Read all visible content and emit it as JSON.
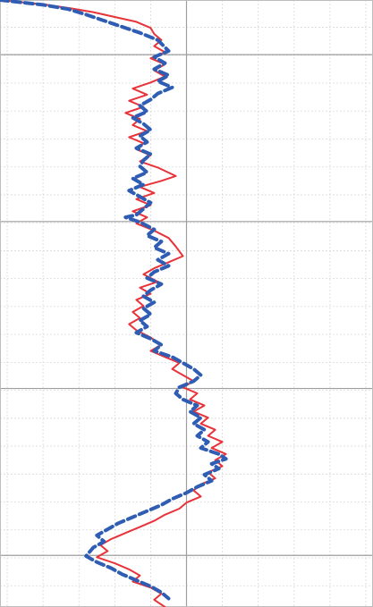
{
  "chart_data": {
    "type": "line",
    "title": "",
    "xlabel": "",
    "ylabel": "",
    "orientation": "vertical-profile",
    "xlim": [
      -5.2,
      5.2
    ],
    "ylim": [
      0,
      100
    ],
    "y_inverted": true,
    "grid": true,
    "major_x_lines": [
      0
    ],
    "major_y_lines": [
      9,
      36.5,
      64,
      91.5
    ],
    "legend": "none",
    "series": [
      {
        "color": "#e8333a",
        "style": "solid",
        "points": [
          [
            -5.2,
            0.0
          ],
          [
            -3.9,
            0.8
          ],
          [
            -3.2,
            1.4
          ],
          [
            -2.6,
            2.0
          ],
          [
            -2.0,
            2.8
          ],
          [
            -1.4,
            3.6
          ],
          [
            -1.0,
            4.6
          ],
          [
            -0.9,
            5.6
          ],
          [
            -0.7,
            6.6
          ],
          [
            -0.9,
            7.6
          ],
          [
            -0.6,
            8.6
          ],
          [
            -1.0,
            9.6
          ],
          [
            -0.6,
            10.6
          ],
          [
            -0.9,
            11.6
          ],
          [
            -0.6,
            12.6
          ],
          [
            -1.0,
            13.6
          ],
          [
            -1.5,
            14.6
          ],
          [
            -1.1,
            15.6
          ],
          [
            -1.6,
            16.6
          ],
          [
            -1.2,
            17.6
          ],
          [
            -1.7,
            18.6
          ],
          [
            -1.3,
            19.6
          ],
          [
            -1.5,
            20.6
          ],
          [
            -1.1,
            21.6
          ],
          [
            -1.6,
            22.6
          ],
          [
            -1.2,
            23.6
          ],
          [
            -1.4,
            24.6
          ],
          [
            -1.0,
            25.6
          ],
          [
            -1.3,
            26.6
          ],
          [
            -0.8,
            27.6
          ],
          [
            -0.3,
            29.0
          ],
          [
            -0.7,
            29.8
          ],
          [
            -1.3,
            30.8
          ],
          [
            -0.9,
            31.8
          ],
          [
            -1.4,
            32.8
          ],
          [
            -1.0,
            33.8
          ],
          [
            -1.5,
            34.8
          ],
          [
            -1.1,
            35.8
          ],
          [
            -1.4,
            36.8
          ],
          [
            -0.9,
            38.0
          ],
          [
            -0.5,
            39.2
          ],
          [
            -0.3,
            40.6
          ],
          [
            -0.1,
            42.2
          ],
          [
            -0.5,
            43.2
          ],
          [
            -0.9,
            44.2
          ],
          [
            -1.2,
            45.2
          ],
          [
            -0.8,
            46.4
          ],
          [
            -1.3,
            47.4
          ],
          [
            -1.0,
            48.4
          ],
          [
            -1.4,
            49.4
          ],
          [
            -1.2,
            50.4
          ],
          [
            -1.5,
            51.4
          ],
          [
            -1.3,
            52.4
          ],
          [
            -1.6,
            53.4
          ],
          [
            -1.4,
            54.4
          ],
          [
            -1.0,
            55.6
          ],
          [
            -0.7,
            56.8
          ],
          [
            -1.0,
            57.8
          ],
          [
            -0.6,
            58.8
          ],
          [
            -0.2,
            59.8
          ],
          [
            -0.4,
            60.8
          ],
          [
            -0.1,
            61.8
          ],
          [
            0.2,
            62.8
          ],
          [
            -0.1,
            63.8
          ],
          [
            0.3,
            64.8
          ],
          [
            0.1,
            65.8
          ],
          [
            0.5,
            66.8
          ],
          [
            0.2,
            67.8
          ],
          [
            0.6,
            68.8
          ],
          [
            0.4,
            69.8
          ],
          [
            0.8,
            70.8
          ],
          [
            0.6,
            71.8
          ],
          [
            1.0,
            72.8
          ],
          [
            0.7,
            73.8
          ],
          [
            1.1,
            74.8
          ],
          [
            0.8,
            75.8
          ],
          [
            1.0,
            76.8
          ],
          [
            0.6,
            77.8
          ],
          [
            0.8,
            78.8
          ],
          [
            0.4,
            79.8
          ],
          [
            0.2,
            80.8
          ],
          [
            0.4,
            81.8
          ],
          [
            0.0,
            82.8
          ],
          [
            -0.2,
            83.8
          ],
          [
            -0.6,
            84.8
          ],
          [
            -0.9,
            85.8
          ],
          [
            -1.3,
            86.8
          ],
          [
            -1.7,
            87.8
          ],
          [
            -2.1,
            88.8
          ],
          [
            -2.4,
            89.8
          ],
          [
            -2.2,
            90.8
          ],
          [
            -2.5,
            91.8
          ],
          [
            -2.0,
            92.8
          ],
          [
            -1.6,
            93.8
          ],
          [
            -1.3,
            94.8
          ],
          [
            -1.5,
            95.8
          ],
          [
            -1.0,
            96.8
          ],
          [
            -0.7,
            97.8
          ],
          [
            -0.9,
            98.8
          ],
          [
            -0.6,
            100.0
          ]
        ]
      },
      {
        "color": "#2f5db3",
        "style": "dashed",
        "points": [
          [
            -5.2,
            0.0
          ],
          [
            -4.0,
            0.8
          ],
          [
            -3.3,
            1.5
          ],
          [
            -2.8,
            2.4
          ],
          [
            -2.3,
            3.4
          ],
          [
            -1.8,
            4.4
          ],
          [
            -1.3,
            5.4
          ],
          [
            -0.8,
            6.6
          ],
          [
            -0.5,
            8.4
          ],
          [
            -0.9,
            9.4
          ],
          [
            -0.6,
            10.4
          ],
          [
            -0.9,
            11.4
          ],
          [
            -0.5,
            12.4
          ],
          [
            -0.8,
            13.4
          ],
          [
            -0.4,
            14.4
          ],
          [
            -0.8,
            15.4
          ],
          [
            -1.0,
            16.4
          ],
          [
            -1.3,
            17.4
          ],
          [
            -1.1,
            18.4
          ],
          [
            -1.5,
            19.4
          ],
          [
            -1.2,
            20.4
          ],
          [
            -1.0,
            21.4
          ],
          [
            -1.3,
            22.4
          ],
          [
            -1.1,
            23.4
          ],
          [
            -1.4,
            24.4
          ],
          [
            -1.0,
            25.4
          ],
          [
            -1.2,
            26.4
          ],
          [
            -1.3,
            27.4
          ],
          [
            -1.1,
            28.4
          ],
          [
            -1.5,
            29.4
          ],
          [
            -1.2,
            30.4
          ],
          [
            -1.6,
            31.4
          ],
          [
            -1.3,
            32.4
          ],
          [
            -1.0,
            33.4
          ],
          [
            -1.2,
            34.4
          ],
          [
            -1.4,
            35.4
          ],
          [
            -1.7,
            35.8
          ],
          [
            -1.3,
            36.6
          ],
          [
            -0.9,
            37.8
          ],
          [
            -1.1,
            38.8
          ],
          [
            -0.7,
            39.8
          ],
          [
            -0.9,
            40.8
          ],
          [
            -0.5,
            41.8
          ],
          [
            -0.8,
            42.8
          ],
          [
            -0.5,
            43.8
          ],
          [
            -0.9,
            44.8
          ],
          [
            -1.1,
            45.8
          ],
          [
            -0.7,
            46.8
          ],
          [
            -1.0,
            47.8
          ],
          [
            -1.2,
            48.8
          ],
          [
            -0.9,
            49.8
          ],
          [
            -1.2,
            50.8
          ],
          [
            -1.0,
            51.8
          ],
          [
            -1.3,
            52.8
          ],
          [
            -1.1,
            53.8
          ],
          [
            -1.4,
            54.8
          ],
          [
            -1.0,
            55.8
          ],
          [
            -0.7,
            56.8
          ],
          [
            -0.9,
            57.8
          ],
          [
            -0.4,
            58.8
          ],
          [
            -0.1,
            59.8
          ],
          [
            0.2,
            60.8
          ],
          [
            0.4,
            61.8
          ],
          [
            0.2,
            62.8
          ],
          [
            -0.2,
            63.8
          ],
          [
            -0.3,
            64.8
          ],
          [
            -0.1,
            65.8
          ],
          [
            0.3,
            66.8
          ],
          [
            0.1,
            67.8
          ],
          [
            0.4,
            68.8
          ],
          [
            0.2,
            69.8
          ],
          [
            0.5,
            70.8
          ],
          [
            0.3,
            71.8
          ],
          [
            0.6,
            72.8
          ],
          [
            0.4,
            73.8
          ],
          [
            0.9,
            74.8
          ],
          [
            1.1,
            75.6
          ],
          [
            0.7,
            76.4
          ],
          [
            0.9,
            77.2
          ],
          [
            0.5,
            78.2
          ],
          [
            0.7,
            79.2
          ],
          [
            0.3,
            80.2
          ],
          [
            0.0,
            81.2
          ],
          [
            -0.4,
            82.2
          ],
          [
            -0.7,
            83.2
          ],
          [
            -1.1,
            84.2
          ],
          [
            -1.5,
            85.2
          ],
          [
            -1.9,
            86.2
          ],
          [
            -2.2,
            87.2
          ],
          [
            -2.5,
            88.2
          ],
          [
            -2.3,
            89.2
          ],
          [
            -2.6,
            90.2
          ],
          [
            -2.8,
            91.6
          ],
          [
            -2.5,
            92.6
          ],
          [
            -2.1,
            93.6
          ],
          [
            -1.8,
            94.6
          ],
          [
            -1.4,
            95.6
          ],
          [
            -1.0,
            96.6
          ],
          [
            -0.7,
            97.6
          ],
          [
            -0.5,
            98.6
          ]
        ]
      }
    ]
  }
}
